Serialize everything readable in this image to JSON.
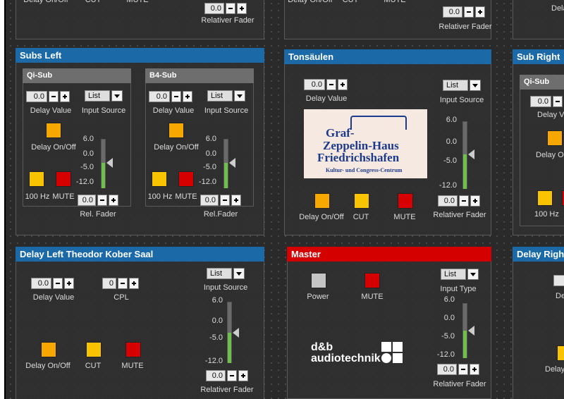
{
  "top_left": {
    "buttons": [
      "Delay On/Off",
      "CUT",
      "MUTE"
    ],
    "fader_value": "0.0",
    "fader_label": "Relativer Fader"
  },
  "top_middle": {
    "buttons": [
      "Delay On/Off",
      "CUT",
      "MUTE"
    ],
    "fader_value": "0.0",
    "fader_label": "Relativer Fader"
  },
  "top_right": {
    "label": "Dela"
  },
  "subs_left": {
    "title": "Subs Left",
    "groups": [
      {
        "title": "Qi-Sub",
        "delay_value": "0.0",
        "delay_label": "Delay Value",
        "source_value": "List",
        "source_label": "Input Source",
        "delay_button": "Delay On/Off",
        "scale": [
          "6.0",
          "0.0",
          "-5.0",
          "-12.0"
        ],
        "buttons": [
          "100 Hz",
          "MUTE"
        ],
        "fader_value": "0.0",
        "fader_label": "Rel. Fader"
      },
      {
        "title": "B4-Sub",
        "delay_value": "0.0",
        "delay_label": "Delay Value",
        "source_value": "List",
        "source_label": "Input Source",
        "delay_button": "Delay On/Off",
        "scale": [
          "6.0",
          "0.0",
          "-5.0",
          "-12.0"
        ],
        "buttons": [
          "100 Hz",
          "MUTE"
        ],
        "fader_value": "0.0",
        "fader_label": "Rel.Fader"
      }
    ]
  },
  "tonsaeulen": {
    "title": "Tonsäulen",
    "delay_value": "0.0",
    "delay_label": "Delay Value",
    "source_value": "List",
    "source_label": "Input Source",
    "logo": [
      "Graf-",
      "Zeppelin-Haus",
      "Friedrichshafen",
      "Kultur- und Congress-Centrum"
    ],
    "scale": [
      "6.0",
      "0.0",
      "-5.0",
      "-12.0"
    ],
    "buttons": [
      "Delay On/Off",
      "CUT",
      "MUTE"
    ],
    "fader_value": "0.0",
    "fader_label": "Relativer Fader"
  },
  "sub_right": {
    "title": "Sub Right",
    "group_title": "Qi-Sub",
    "delay_value": "0.0",
    "delay_label": "Delay Va",
    "delay_button": "Delay On",
    "buttons": [
      "100 Hz"
    ]
  },
  "delay_left": {
    "title": "Delay Left Theodor Kober Saal",
    "delay_value": "0.0",
    "delay_label": "Delay Value",
    "cpl_value": "0",
    "cpl_label": "CPL",
    "source_value": "List",
    "source_label": "Input Source",
    "scale": [
      "6.0",
      "0.0",
      "-5.0",
      "-12.0"
    ],
    "buttons": [
      "Delay On/Off",
      "CUT",
      "MUTE"
    ],
    "fader_value": "0.0",
    "fader_label": "Relativer Fader"
  },
  "master": {
    "title": "Master",
    "buttons": [
      "Power",
      "MUTE"
    ],
    "source_value": "List",
    "source_label": "Input Type",
    "scale": [
      "6.0",
      "0.0",
      "-5.0",
      "-12.0"
    ],
    "logo": [
      "d&b",
      "audiotechnik"
    ],
    "fader_value": "0.0",
    "fader_label": "Relativer Fader"
  },
  "delay_right": {
    "title": "Delay Righ",
    "labels": [
      "Dela",
      "Delay"
    ]
  }
}
